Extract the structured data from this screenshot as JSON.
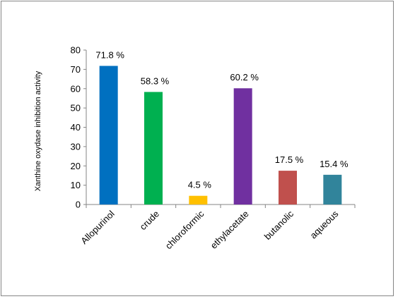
{
  "chart_data": {
    "type": "bar",
    "title": "",
    "xlabel": "",
    "ylabel": "Xanthine oxydase inhibition activity",
    "ylim": [
      0,
      80
    ],
    "yticks": [
      0,
      10,
      20,
      30,
      40,
      50,
      60,
      70,
      80
    ],
    "grid": false,
    "legend": "none",
    "categories": [
      "Allopurinol",
      "crude",
      "chloroformic",
      "ethylacetate",
      "butanolic",
      "aqueous"
    ],
    "values": [
      71.8,
      58.3,
      4.5,
      60.2,
      17.5,
      15.4
    ],
    "data_labels": [
      "71.8 %",
      "58.3 %",
      "4.5 %",
      "60.2 %",
      "17.5 %",
      "15.4 %"
    ],
    "colors": [
      "#0070C0",
      "#00B050",
      "#FFC000",
      "#7030A0",
      "#C0504D",
      "#31849B"
    ]
  }
}
